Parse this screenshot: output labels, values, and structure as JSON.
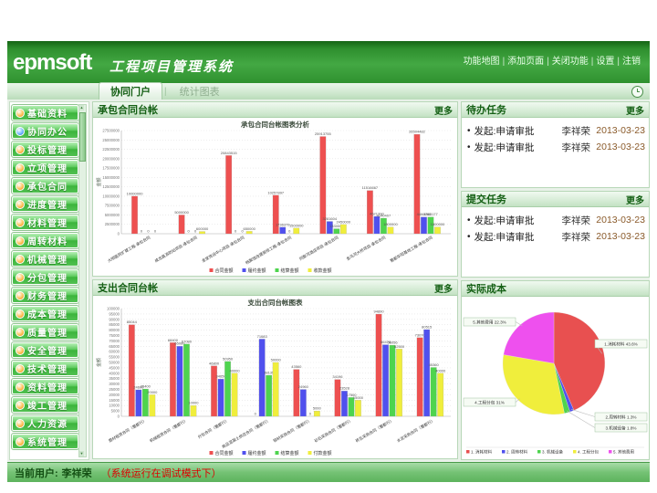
{
  "ui": {
    "bullet": "•",
    "separator": "|"
  },
  "header": {
    "logo": "epmsoft",
    "app_title": "工程项目管理系统",
    "links": [
      "功能地图",
      "添加页面",
      "关闭功能",
      "设置",
      "注销"
    ]
  },
  "tabs": [
    {
      "label": "协同门户",
      "active": true
    },
    {
      "label": "统计图表",
      "active": false
    }
  ],
  "sidebar": {
    "items": [
      {
        "label": "基础资料",
        "active": false
      },
      {
        "label": "协同办公",
        "active": true
      },
      {
        "label": "投标管理",
        "active": false
      },
      {
        "label": "立项管理",
        "active": false
      },
      {
        "label": "承包合同",
        "active": false
      },
      {
        "label": "进度管理",
        "active": false
      },
      {
        "label": "材料管理",
        "active": false
      },
      {
        "label": "周转材料",
        "active": false
      },
      {
        "label": "机械管理",
        "active": false
      },
      {
        "label": "分包管理",
        "active": false
      },
      {
        "label": "财务管理",
        "active": false
      },
      {
        "label": "成本管理",
        "active": false
      },
      {
        "label": "质量管理",
        "active": false
      },
      {
        "label": "安全管理",
        "active": false
      },
      {
        "label": "技术管理",
        "active": false
      },
      {
        "label": "资料管理",
        "active": false
      },
      {
        "label": "竣工管理",
        "active": false
      },
      {
        "label": "人力资源",
        "active": false
      },
      {
        "label": "系统管理",
        "active": false
      }
    ]
  },
  "panels": {
    "contract": {
      "title": "承包合同台帐",
      "more": "更多"
    },
    "expense": {
      "title": "支出合同台帐",
      "more": "更多"
    },
    "todo": {
      "title": "待办任务",
      "more": "更多",
      "items": [
        {
          "action": "发起:申请审批",
          "user": "李祥荣",
          "date": "2013-03-23"
        },
        {
          "action": "发起:申请审批",
          "user": "李祥荣",
          "date": "2013-03-23"
        }
      ]
    },
    "submitted": {
      "title": "提交任务",
      "more": "更多",
      "items": [
        {
          "action": "发起:申请审批",
          "user": "李祥荣",
          "date": "2013-03-23"
        },
        {
          "action": "发起:申请审批",
          "user": "李祥荣",
          "date": "2013-03-23"
        }
      ]
    },
    "cost": {
      "title": "实际成本"
    }
  },
  "footer": {
    "current_user_label": "当前用户:",
    "user": "李祥荣",
    "debug_note": "（系统运行在调试模式下）"
  },
  "chart_data": [
    {
      "id": "contract-chart",
      "type": "bar",
      "title": "承包合同台帐图表分析",
      "xlabel": "",
      "ylabel": "金额",
      "ylim": [
        0,
        27500000
      ],
      "ytick_step": 2500000,
      "grid": true,
      "legend_position": "bottom",
      "categories": [
        "大明医院扩建工程-承包合同",
        "成龙路消防站项目-承包合同",
        "金堂货运中心项目-承包合同",
        "档案馆改建装修工程-承包合同",
        "同聚河酒店项目-承包合同",
        "金马河大桥项目-承包合同",
        "蜀都华阳基地工程-承包合同"
      ],
      "series": [
        {
          "name": "合同金额",
          "color": "#ee5050",
          "values": [
            10000000,
            5000000,
            20843515,
            10257897,
            25913755,
            11516667,
            26504482
          ]
        },
        {
          "name": "履约金额",
          "color": "#5050ee",
          "values": [
            0,
            0,
            0,
            1736379,
            3281604,
            4621390,
            4460760
          ]
        },
        {
          "name": "结算金额",
          "color": "#4ed44e",
          "values": [
            0,
            0,
            0,
            0,
            1330000,
            4140407,
            4463177
          ]
        },
        {
          "name": "收款金额",
          "color": "#f0ee3c",
          "values": [
            0,
            600000,
            650000,
            1500000,
            2450000,
            1800000,
            1800000
          ]
        }
      ]
    },
    {
      "id": "expense-chart",
      "type": "bar",
      "title": "支出合同台帐图表",
      "xlabel": "",
      "ylabel": "金额",
      "ylim": [
        0,
        100000
      ],
      "ytick_step": 5000,
      "grid": true,
      "legend_position": "bottom",
      "categories": [
        "周材租赁合同（蜀都行）",
        "机械租赁合同（蜀都行）",
        "分包合同（蜀都行）",
        "商品混凝土供应合同（蜀都行）",
        "钢材采购合同（蜀都行）",
        "砂石采购合同（蜀都行）",
        "砖瓦采购合同（蜀都行）",
        "水泥采购合同（蜀都行）"
      ],
      "series": [
        {
          "name": "合同金额",
          "color": "#ee5050",
          "values": [
            85044,
            68400,
            46800,
            0,
            43560,
            34196,
            94890,
            73070
          ]
        },
        {
          "name": "履约金额",
          "color": "#5050ee",
          "values": [
            24600,
            65060,
            34650,
            71683,
            24960,
            23528,
            66478,
            80515
          ]
        },
        {
          "name": "结算金额",
          "color": "#4ed44e",
          "values": [
            25400,
            67080,
            50950,
            38135,
            0,
            17500,
            66056,
            45360
          ]
        },
        {
          "name": "付款金额",
          "color": "#f0ee3c",
          "values": [
            20000,
            10000,
            40000,
            50000,
            5000,
            15000,
            62500,
            40000
          ]
        }
      ]
    },
    {
      "id": "cost-pie",
      "type": "pie",
      "title": "实际成本",
      "slices": [
        {
          "label": "1.消耗材料",
          "pct": 43.6,
          "color": "#e85050"
        },
        {
          "label": "2.周转材料",
          "pct": 1.3,
          "color": "#5050ee"
        },
        {
          "label": "3.机械设备",
          "pct": 1.8,
          "color": "#4ed44e"
        },
        {
          "label": "4.工程分包",
          "pct": 31.0,
          "color": "#f0ee3c"
        },
        {
          "label": "5.其他费用",
          "pct": 22.3,
          "color": "#ee50ee"
        }
      ]
    }
  ]
}
